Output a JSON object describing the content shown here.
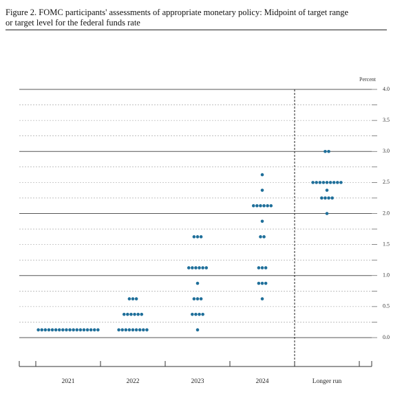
{
  "chart_data": {
    "type": "dot",
    "title": "Figure 2.  FOMC participants' assessments of appropriate monetary policy:  Midpoint of target range",
    "subtitle": "or target level for the federal funds rate",
    "ylabel": "Percent",
    "categories": [
      "2021",
      "2022",
      "2023",
      "2024",
      "Longer run"
    ],
    "color": "#1f6f9a",
    "dots": [
      [
        {
          "value": 0.125,
          "count": 18
        }
      ],
      [
        {
          "value": 0.625,
          "count": 3
        },
        {
          "value": 0.375,
          "count": 6
        },
        {
          "value": 0.125,
          "count": 9
        }
      ],
      [
        {
          "value": 1.625,
          "count": 3
        },
        {
          "value": 1.125,
          "count": 6
        },
        {
          "value": 0.875,
          "count": 1
        },
        {
          "value": 0.625,
          "count": 3
        },
        {
          "value": 0.375,
          "count": 4
        },
        {
          "value": 0.125,
          "count": 1
        }
      ],
      [
        {
          "value": 2.625,
          "count": 1
        },
        {
          "value": 2.375,
          "count": 1
        },
        {
          "value": 2.125,
          "count": 6
        },
        {
          "value": 1.875,
          "count": 1
        },
        {
          "value": 1.625,
          "count": 2
        },
        {
          "value": 1.125,
          "count": 3
        },
        {
          "value": 0.875,
          "count": 3
        },
        {
          "value": 0.625,
          "count": 1
        }
      ],
      [
        {
          "value": 3.0,
          "count": 2
        },
        {
          "value": 2.5,
          "count": 9
        },
        {
          "value": 2.375,
          "count": 1
        },
        {
          "value": 2.25,
          "count": 4
        },
        {
          "value": 2.0,
          "count": 1
        }
      ]
    ],
    "ylim": [
      0,
      4
    ],
    "yticks": [
      {
        "value": 0,
        "label": "0.0"
      },
      {
        "value": 0.5,
        "label": "0.5"
      },
      {
        "value": 1,
        "label": "1.0"
      },
      {
        "value": 1.5,
        "label": "1.5"
      },
      {
        "value": 2,
        "label": "2.0"
      },
      {
        "value": 2.5,
        "label": "2.5"
      },
      {
        "value": 3,
        "label": "3.0"
      },
      {
        "value": 3.5,
        "label": "3.5"
      },
      {
        "value": 4,
        "label": "4.0"
      }
    ],
    "yminorticks": [
      0.25,
      0.75,
      1.25,
      1.75,
      2.25,
      2.75,
      3.25,
      3.75
    ],
    "grid": true
  }
}
